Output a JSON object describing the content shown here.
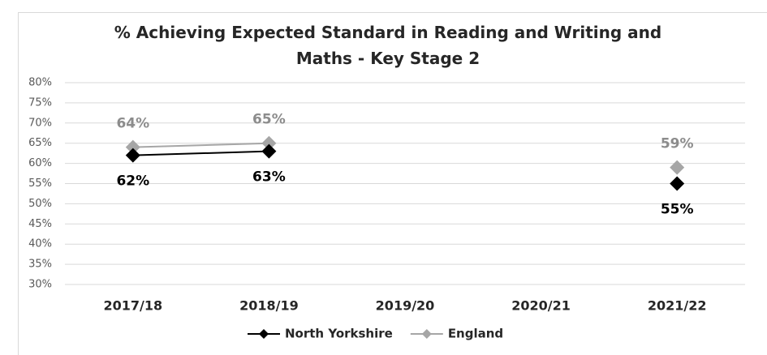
{
  "chart_data": {
    "type": "line",
    "title": "% Achieving Expected Standard in Reading and Writing and Maths - Key Stage 2",
    "categories": [
      "2017/18",
      "2018/19",
      "2019/20",
      "2020/21",
      "2021/22"
    ],
    "series": [
      {
        "name": "North Yorkshire",
        "color": "#000000",
        "values": [
          62,
          63,
          null,
          null,
          55
        ],
        "value_labels": [
          "62%",
          "63%",
          null,
          null,
          "55%"
        ]
      },
      {
        "name": "England",
        "color": "#a6a6a6",
        "values": [
          64,
          65,
          null,
          null,
          59
        ],
        "value_labels": [
          "64%",
          "65%",
          null,
          null,
          "59%"
        ]
      }
    ],
    "ylim": [
      30,
      80
    ],
    "yticks": [
      {
        "value": 30,
        "label": "30%"
      },
      {
        "value": 35,
        "label": "35%"
      },
      {
        "value": 40,
        "label": "40%"
      },
      {
        "value": 45,
        "label": "45%"
      },
      {
        "value": 50,
        "label": "50%"
      },
      {
        "value": 55,
        "label": "55%"
      },
      {
        "value": 60,
        "label": "60%"
      },
      {
        "value": 65,
        "label": "65%"
      },
      {
        "value": 70,
        "label": "70%"
      },
      {
        "value": 75,
        "label": "75%"
      },
      {
        "value": 80,
        "label": "80%"
      }
    ],
    "grid": true,
    "legend": "bottom"
  }
}
